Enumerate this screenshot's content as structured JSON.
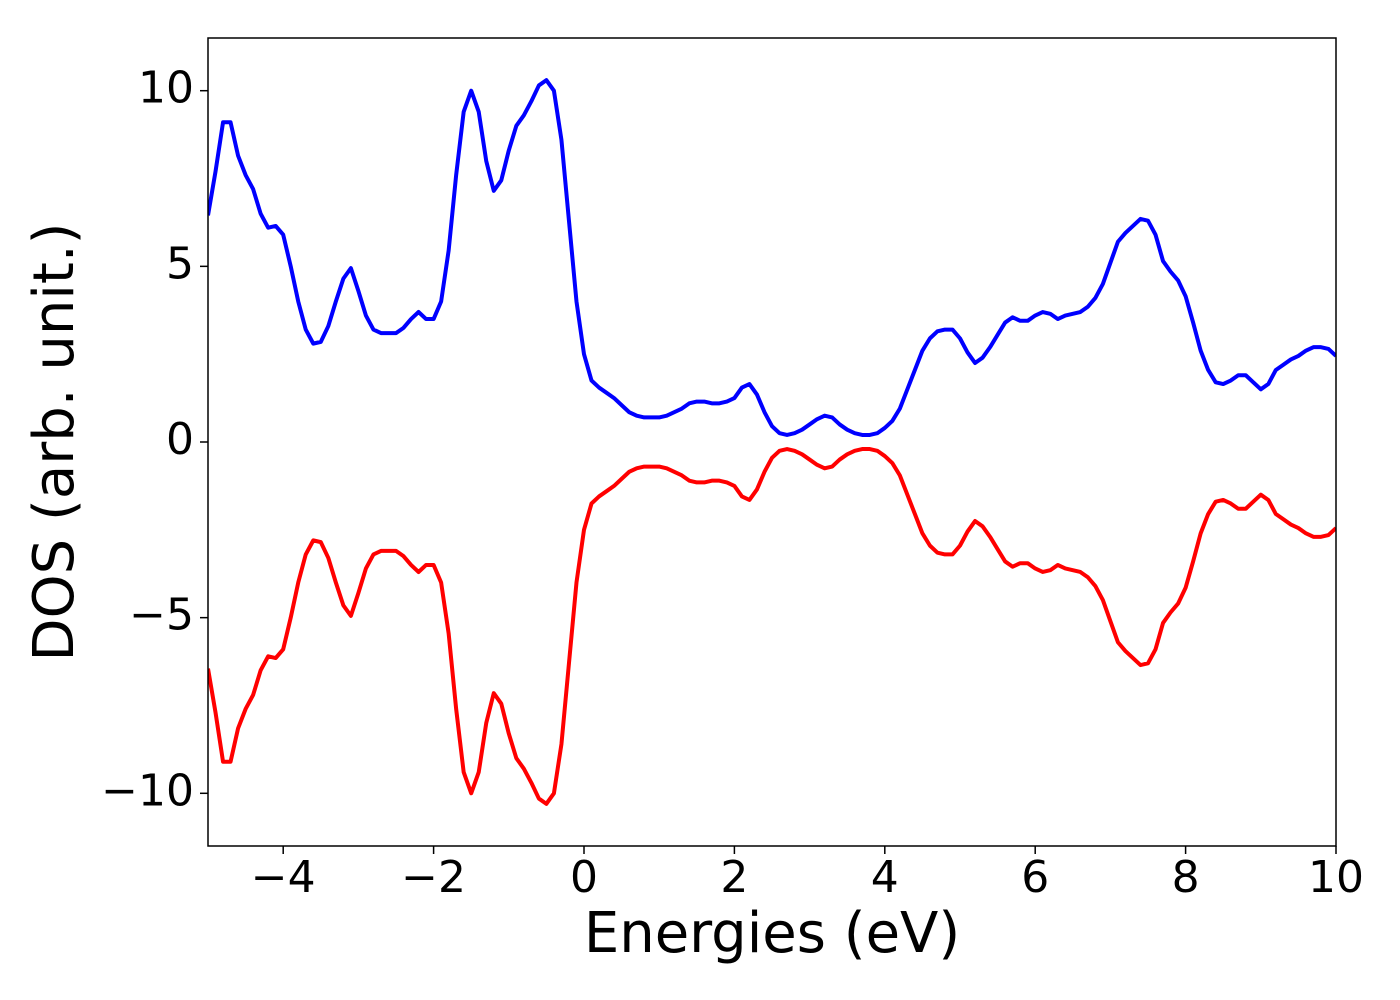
{
  "chart_data": {
    "type": "line",
    "x_label": "Energies (eV)",
    "y_label": "DOS (arb. unit.)",
    "x": [
      -5,
      -4.9,
      -4.8,
      -4.7,
      -4.6,
      -4.5,
      -4.4,
      -4.3,
      -4.2,
      -4.1,
      -4,
      -3.9,
      -3.8,
      -3.7,
      -3.6,
      -3.5,
      -3.4,
      -3.3,
      -3.2,
      -3.1,
      -3,
      -2.9,
      -2.8,
      -2.7,
      -2.6,
      -2.5,
      -2.4,
      -2.3,
      -2.2,
      -2.1,
      -2,
      -1.9,
      -1.8,
      -1.7,
      -1.6,
      -1.5,
      -1.4,
      -1.3,
      -1.2,
      -1.1,
      -1,
      -0.9,
      -0.8,
      -0.7,
      -0.6,
      -0.5,
      -0.4,
      -0.3,
      -0.2,
      -0.1,
      0,
      0.1,
      0.2,
      0.3,
      0.4,
      0.5,
      0.6,
      0.7,
      0.8,
      0.9,
      1,
      1.1,
      1.2,
      1.3,
      1.4,
      1.5,
      1.6,
      1.7,
      1.8,
      1.9,
      2,
      2.1,
      2.2,
      2.3,
      2.4,
      2.5,
      2.6,
      2.7,
      2.8,
      2.9,
      3,
      3.1,
      3.2,
      3.3,
      3.4,
      3.5,
      3.6,
      3.7,
      3.8,
      3.9,
      4,
      4.1,
      4.2,
      4.3,
      4.4,
      4.5,
      4.6,
      4.7,
      4.8,
      4.9,
      5,
      5.1,
      5.2,
      5.3,
      5.4,
      5.5,
      5.6,
      5.7,
      5.8,
      5.9,
      6,
      6.1,
      6.2,
      6.3,
      6.4,
      6.5,
      6.6,
      6.7,
      6.8,
      6.9,
      7,
      7.1,
      7.2,
      7.3,
      7.4,
      7.5,
      7.6,
      7.7,
      7.8,
      7.9,
      8,
      8.1,
      8.2,
      8.3,
      8.4,
      8.5,
      8.6,
      8.7,
      8.8,
      8.9,
      9,
      9.1,
      9.2,
      9.3,
      9.4,
      9.5,
      9.6,
      9.7,
      9.8,
      9.9,
      10
    ],
    "series": [
      {
        "color": "#0000ff",
        "values": [
          6.45,
          7.7,
          9.1,
          9.1,
          8.15,
          7.6,
          7.2,
          6.5,
          6.1,
          6.15,
          5.9,
          5.0,
          4.0,
          3.2,
          2.8,
          2.85,
          3.3,
          4.0,
          4.65,
          4.95,
          4.3,
          3.6,
          3.2,
          3.1,
          3.1,
          3.1,
          3.25,
          3.5,
          3.7,
          3.5,
          3.5,
          4.0,
          5.45,
          7.6,
          9.4,
          10.0,
          9.4,
          8.0,
          7.15,
          7.45,
          8.3,
          9.0,
          9.3,
          9.7,
          10.15,
          10.3,
          10.0,
          8.6,
          6.3,
          4.0,
          2.5,
          1.75,
          1.55,
          1.4,
          1.25,
          1.05,
          0.85,
          0.75,
          0.7,
          0.7,
          0.7,
          0.75,
          0.85,
          0.95,
          1.1,
          1.15,
          1.15,
          1.1,
          1.1,
          1.15,
          1.25,
          1.55,
          1.65,
          1.35,
          0.85,
          0.45,
          0.25,
          0.2,
          0.25,
          0.35,
          0.5,
          0.65,
          0.75,
          0.7,
          0.5,
          0.35,
          0.25,
          0.2,
          0.2,
          0.25,
          0.4,
          0.6,
          0.95,
          1.5,
          2.05,
          2.6,
          2.95,
          3.15,
          3.2,
          3.2,
          2.95,
          2.55,
          2.25,
          2.4,
          2.7,
          3.05,
          3.4,
          3.55,
          3.45,
          3.45,
          3.6,
          3.7,
          3.65,
          3.5,
          3.6,
          3.65,
          3.7,
          3.85,
          4.1,
          4.5,
          5.1,
          5.7,
          5.95,
          6.15,
          6.35,
          6.3,
          5.9,
          5.15,
          4.85,
          4.6,
          4.15,
          3.4,
          2.6,
          2.05,
          1.7,
          1.65,
          1.75,
          1.9,
          1.9,
          1.7,
          1.5,
          1.65,
          2.05,
          2.2,
          2.35,
          2.45,
          2.6,
          2.7,
          2.7,
          2.65,
          2.45
        ]
      },
      {
        "color": "#ff0000",
        "values": [
          -6.45,
          -7.7,
          -9.1,
          -9.1,
          -8.15,
          -7.6,
          -7.2,
          -6.5,
          -6.1,
          -6.15,
          -5.9,
          -5.0,
          -4.0,
          -3.2,
          -2.8,
          -2.85,
          -3.3,
          -4.0,
          -4.65,
          -4.95,
          -4.3,
          -3.6,
          -3.2,
          -3.1,
          -3.1,
          -3.1,
          -3.25,
          -3.5,
          -3.7,
          -3.5,
          -3.5,
          -4.0,
          -5.45,
          -7.6,
          -9.4,
          -10.0,
          -9.4,
          -8.0,
          -7.15,
          -7.45,
          -8.3,
          -9.0,
          -9.3,
          -9.7,
          -10.15,
          -10.3,
          -10.0,
          -8.6,
          -6.3,
          -4.0,
          -2.5,
          -1.75,
          -1.55,
          -1.4,
          -1.25,
          -1.05,
          -0.85,
          -0.75,
          -0.7,
          -0.7,
          -0.7,
          -0.75,
          -0.85,
          -0.95,
          -1.1,
          -1.15,
          -1.15,
          -1.1,
          -1.1,
          -1.15,
          -1.25,
          -1.55,
          -1.65,
          -1.35,
          -0.85,
          -0.45,
          -0.25,
          -0.2,
          -0.25,
          -0.35,
          -0.5,
          -0.65,
          -0.75,
          -0.7,
          -0.5,
          -0.35,
          -0.25,
          -0.2,
          -0.2,
          -0.25,
          -0.4,
          -0.6,
          -0.95,
          -1.5,
          -2.05,
          -2.6,
          -2.95,
          -3.15,
          -3.2,
          -3.2,
          -2.95,
          -2.55,
          -2.25,
          -2.4,
          -2.7,
          -3.05,
          -3.4,
          -3.55,
          -3.45,
          -3.45,
          -3.6,
          -3.7,
          -3.65,
          -3.5,
          -3.6,
          -3.65,
          -3.7,
          -3.85,
          -4.1,
          -4.5,
          -5.1,
          -5.7,
          -5.95,
          -6.15,
          -6.35,
          -6.3,
          -5.9,
          -5.15,
          -4.85,
          -4.6,
          -4.15,
          -3.4,
          -2.6,
          -2.05,
          -1.7,
          -1.65,
          -1.75,
          -1.9,
          -1.9,
          -1.7,
          -1.5,
          -1.65,
          -2.05,
          -2.2,
          -2.35,
          -2.45,
          -2.6,
          -2.7,
          -2.7,
          -2.65,
          -2.45
        ]
      }
    ],
    "xlim": [
      -5,
      10
    ],
    "xticks": [
      {
        "value": -4,
        "label": "−4"
      },
      {
        "value": -2,
        "label": "−2"
      },
      0,
      2,
      4,
      6,
      8,
      10
    ],
    "ylim": [
      -11.5,
      11.5
    ],
    "yticks": [
      {
        "value": -10,
        "label": "−10"
      },
      {
        "value": -5,
        "label": "−5"
      },
      0,
      5,
      10
    ],
    "grid": false
  }
}
